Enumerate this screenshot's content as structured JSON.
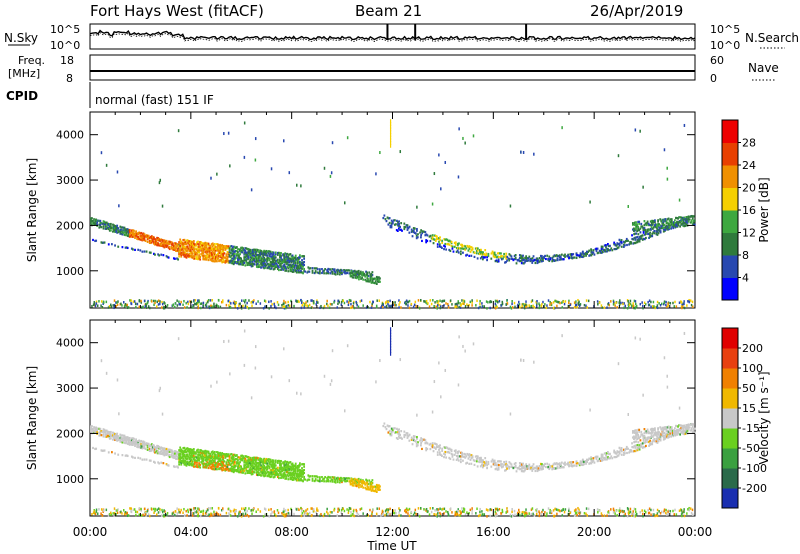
{
  "header": {
    "station": "Fort Hays West (fitACF)",
    "beam": "Beam 21",
    "date": "26/Apr/2019"
  },
  "strip_noise": {
    "left_label": "N.Sky",
    "right_label": "N.Search",
    "left_ticks": [
      "10^5",
      "10^0"
    ],
    "right_ticks": [
      "10^5",
      "10^0"
    ]
  },
  "strip_freq": {
    "left_label_1": "Freq.",
    "left_label_2": "[MHz]",
    "right_label": "Nave",
    "left_ticks": [
      "18",
      "8"
    ],
    "right_ticks": [
      "60",
      "0"
    ]
  },
  "cpid": {
    "label": "CPID",
    "mode": "normal (fast) 151 IF"
  },
  "chart_data": [
    {
      "type": "heatmap",
      "title": "",
      "xlabel": "Time UT",
      "ylabel": "Slant Range [km]",
      "x_ticks": [
        "00:00",
        "04:00",
        "08:00",
        "12:00",
        "16:00",
        "20:00",
        "00:00"
      ],
      "y_ticks": [
        "1000",
        "2000",
        "3000",
        "4000"
      ],
      "xlim_hours": [
        0,
        24
      ],
      "ylim_km": [
        180,
        4500
      ],
      "colorbar": {
        "label": "Power [dB]",
        "ticks": [
          "4",
          "8",
          "12",
          "16",
          "20",
          "24",
          "28"
        ],
        "colors": [
          "#0000ff",
          "#2848b0",
          "#2f7a3c",
          "#3ea840",
          "#f5d000",
          "#f09000",
          "#e84000",
          "#ee0000"
        ]
      }
    },
    {
      "type": "heatmap",
      "title": "",
      "xlabel": "Time UT",
      "ylabel": "Slant Range [km]",
      "x_ticks": [
        "00:00",
        "04:00",
        "08:00",
        "12:00",
        "16:00",
        "20:00",
        "00:00"
      ],
      "y_ticks": [
        "1000",
        "2000",
        "3000",
        "4000"
      ],
      "xlim_hours": [
        0,
        24
      ],
      "ylim_km": [
        180,
        4500
      ],
      "colorbar": {
        "label": "Velocity [m s⁻¹]",
        "ticks": [
          "200",
          "100",
          "50",
          "15",
          "-15",
          "-50",
          "-100",
          "-200"
        ],
        "colors": [
          "#1a2fb0",
          "#2a6a4a",
          "#3aa040",
          "#6ad020",
          "#c8c8c8",
          "#f0b800",
          "#f08000",
          "#e84010",
          "#e00000"
        ]
      }
    }
  ]
}
